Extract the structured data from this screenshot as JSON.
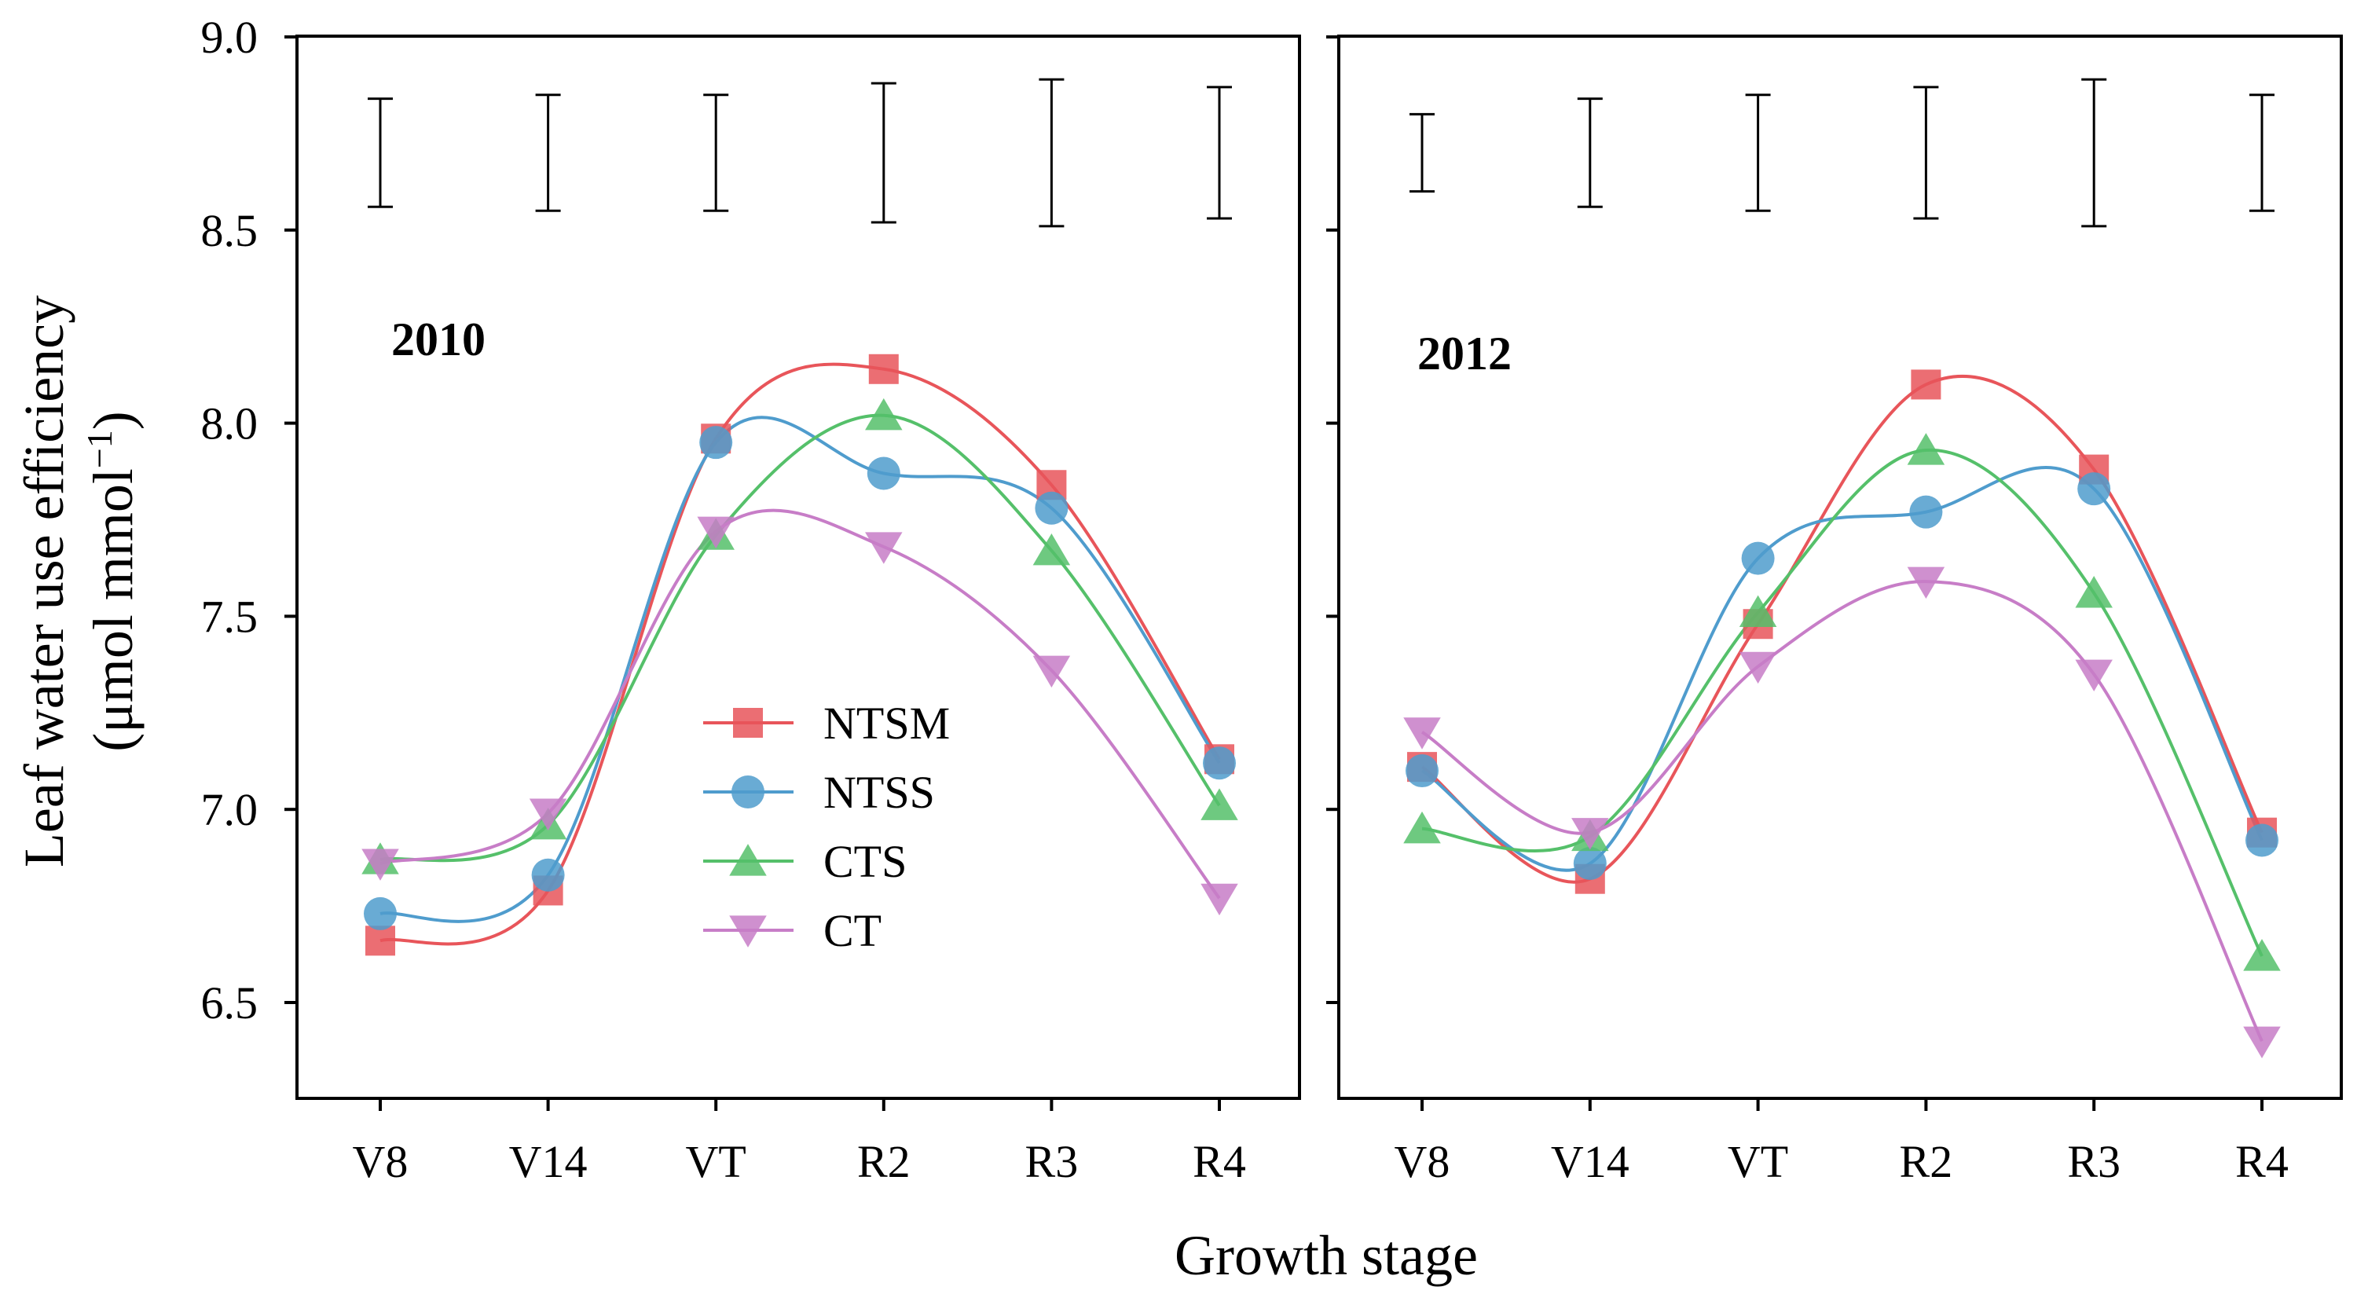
{
  "figure": {
    "ylabel_line1": "Leaf water use efficiency",
    "ylabel_line2": "(μmol mmol",
    "ylabel_sup": "−1",
    "ylabel_close": ")",
    "xlabel": "Growth stage",
    "ytick_labels": [
      "6.5",
      "7.0",
      "7.5",
      "8.0",
      "8.5",
      "9.0"
    ]
  },
  "legend": {
    "items": [
      {
        "name": "NTSM",
        "marker": "square",
        "color": "#e8555a"
      },
      {
        "name": "NTSS",
        "marker": "circle",
        "color": "#4f9ccd"
      },
      {
        "name": "CTS",
        "marker": "triangle-up",
        "color": "#55c06a"
      },
      {
        "name": "CT",
        "marker": "triangle-down",
        "color": "#c77dc7"
      }
    ]
  },
  "chart_data": [
    {
      "type": "line",
      "panel_label": "2010",
      "categories": [
        "V8",
        "V14",
        "VT",
        "R2",
        "R3",
        "R4"
      ],
      "xlabel": "Growth stage",
      "ylabel": "Leaf water use efficiency (μmol mmol−1)",
      "ylim": [
        6.25,
        9.0
      ],
      "yticks": [
        6.5,
        7.0,
        7.5,
        8.0,
        8.5,
        9.0
      ],
      "series": [
        {
          "name": "NTSM",
          "values": [
            6.66,
            6.79,
            7.96,
            8.14,
            7.84,
            7.13
          ]
        },
        {
          "name": "NTSS",
          "values": [
            6.73,
            6.83,
            7.95,
            7.87,
            7.78,
            7.12
          ]
        },
        {
          "name": "CTS",
          "values": [
            6.87,
            6.96,
            7.71,
            8.02,
            7.67,
            7.01
          ]
        },
        {
          "name": "CT",
          "values": [
            6.86,
            6.99,
            7.72,
            7.68,
            7.36,
            6.77
          ]
        }
      ],
      "error_bars": [
        {
          "low": 8.56,
          "high": 8.84
        },
        {
          "low": 8.55,
          "high": 8.85
        },
        {
          "low": 8.55,
          "high": 8.85
        },
        {
          "low": 8.52,
          "high": 8.88
        },
        {
          "low": 8.51,
          "high": 8.89
        },
        {
          "low": 8.53,
          "high": 8.87
        }
      ]
    },
    {
      "type": "line",
      "panel_label": "2012",
      "categories": [
        "V8",
        "V14",
        "VT",
        "R2",
        "R3",
        "R4"
      ],
      "xlabel": "Growth stage",
      "ylabel": "Leaf water use efficiency (μmol mmol−1)",
      "ylim": [
        6.25,
        9.0
      ],
      "yticks": [
        6.5,
        7.0,
        7.5,
        8.0,
        8.5,
        9.0
      ],
      "series": [
        {
          "name": "NTSM",
          "values": [
            7.11,
            6.82,
            7.48,
            8.1,
            7.88,
            6.94
          ]
        },
        {
          "name": "NTSS",
          "values": [
            7.1,
            6.86,
            7.65,
            7.77,
            7.83,
            6.92
          ]
        },
        {
          "name": "CTS",
          "values": [
            6.95,
            6.93,
            7.51,
            7.93,
            7.56,
            6.62
          ]
        },
        {
          "name": "CT",
          "values": [
            7.2,
            6.94,
            7.37,
            7.59,
            7.35,
            6.4
          ]
        }
      ],
      "error_bars": [
        {
          "low": 8.6,
          "high": 8.8
        },
        {
          "low": 8.56,
          "high": 8.84
        },
        {
          "low": 8.55,
          "high": 8.85
        },
        {
          "low": 8.53,
          "high": 8.87
        },
        {
          "low": 8.51,
          "high": 8.89
        },
        {
          "low": 8.55,
          "high": 8.85
        }
      ]
    }
  ]
}
